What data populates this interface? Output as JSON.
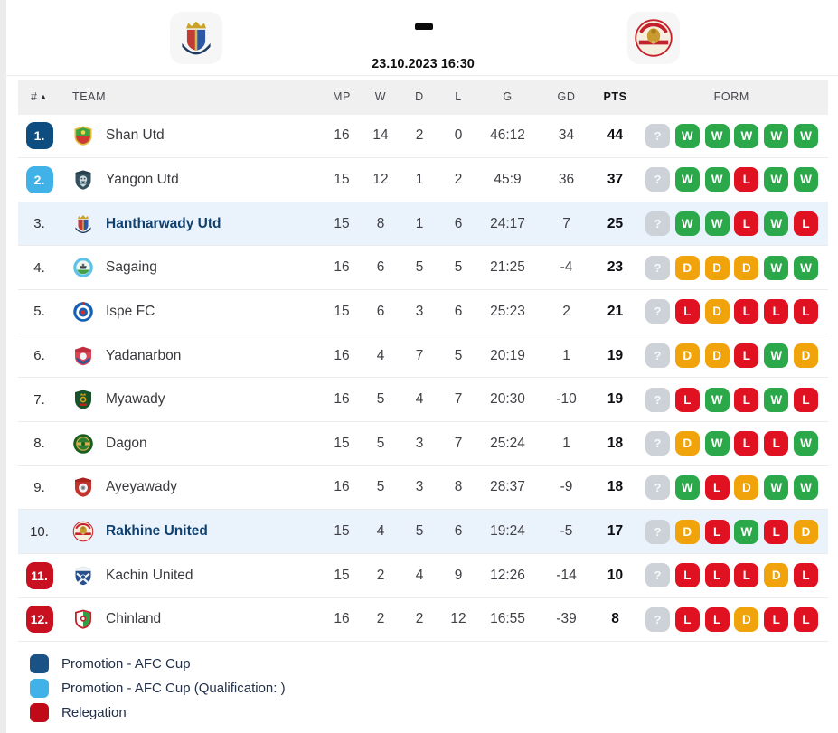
{
  "header": {
    "home_logo": "hantharwady-crest",
    "away_logo": "rakhine-crest",
    "datetime": "23.10.2023 16:30"
  },
  "table": {
    "columns": [
      "#",
      "TEAM",
      "MP",
      "W",
      "D",
      "L",
      "G",
      "GD",
      "PTS",
      "FORM"
    ],
    "form_unknown_label": "?",
    "rows": [
      {
        "pos": "1.",
        "badge": "dark_blue",
        "team": "Shan Utd",
        "logo": "shan-utd",
        "mp": "16",
        "w": "14",
        "d": "2",
        "l": "0",
        "g": "46:12",
        "gd": "34",
        "pts": "44",
        "form": [
          "W",
          "W",
          "W",
          "W",
          "W"
        ],
        "highlight": false
      },
      {
        "pos": "2.",
        "badge": "light_blue",
        "team": "Yangon Utd",
        "logo": "yangon-utd",
        "mp": "15",
        "w": "12",
        "d": "1",
        "l": "2",
        "g": "45:9",
        "gd": "36",
        "pts": "37",
        "form": [
          "W",
          "W",
          "L",
          "W",
          "W"
        ],
        "highlight": false
      },
      {
        "pos": "3.",
        "badge": null,
        "team": "Hantharwady Utd",
        "logo": "hantharwady",
        "mp": "15",
        "w": "8",
        "d": "1",
        "l": "6",
        "g": "24:17",
        "gd": "7",
        "pts": "25",
        "form": [
          "W",
          "W",
          "L",
          "W",
          "L"
        ],
        "highlight": true
      },
      {
        "pos": "4.",
        "badge": null,
        "team": "Sagaing",
        "logo": "sagaing",
        "mp": "16",
        "w": "6",
        "d": "5",
        "l": "5",
        "g": "21:25",
        "gd": "-4",
        "pts": "23",
        "form": [
          "D",
          "D",
          "D",
          "W",
          "W"
        ],
        "highlight": false
      },
      {
        "pos": "5.",
        "badge": null,
        "team": "Ispe FC",
        "logo": "ispe",
        "mp": "15",
        "w": "6",
        "d": "3",
        "l": "6",
        "g": "25:23",
        "gd": "2",
        "pts": "21",
        "form": [
          "L",
          "D",
          "L",
          "L",
          "L"
        ],
        "highlight": false
      },
      {
        "pos": "6.",
        "badge": null,
        "team": "Yadanarbon",
        "logo": "yadanarbon",
        "mp": "16",
        "w": "4",
        "d": "7",
        "l": "5",
        "g": "20:19",
        "gd": "1",
        "pts": "19",
        "form": [
          "D",
          "D",
          "L",
          "W",
          "D"
        ],
        "highlight": false
      },
      {
        "pos": "7.",
        "badge": null,
        "team": "Myawady",
        "logo": "myawady",
        "mp": "16",
        "w": "5",
        "d": "4",
        "l": "7",
        "g": "20:30",
        "gd": "-10",
        "pts": "19",
        "form": [
          "L",
          "W",
          "L",
          "W",
          "L"
        ],
        "highlight": false
      },
      {
        "pos": "8.",
        "badge": null,
        "team": "Dagon",
        "logo": "dagon",
        "mp": "15",
        "w": "5",
        "d": "3",
        "l": "7",
        "g": "25:24",
        "gd": "1",
        "pts": "18",
        "form": [
          "D",
          "W",
          "L",
          "L",
          "W"
        ],
        "highlight": false
      },
      {
        "pos": "9.",
        "badge": null,
        "team": "Ayeyawady",
        "logo": "ayeyawady",
        "mp": "16",
        "w": "5",
        "d": "3",
        "l": "8",
        "g": "28:37",
        "gd": "-9",
        "pts": "18",
        "form": [
          "W",
          "L",
          "D",
          "W",
          "W"
        ],
        "highlight": false
      },
      {
        "pos": "10.",
        "badge": null,
        "team": "Rakhine United",
        "logo": "rakhine",
        "mp": "15",
        "w": "4",
        "d": "5",
        "l": "6",
        "g": "19:24",
        "gd": "-5",
        "pts": "17",
        "form": [
          "D",
          "L",
          "W",
          "L",
          "D"
        ],
        "highlight": true
      },
      {
        "pos": "11.",
        "badge": "red",
        "team": "Kachin United",
        "logo": "kachin",
        "mp": "15",
        "w": "2",
        "d": "4",
        "l": "9",
        "g": "12:26",
        "gd": "-14",
        "pts": "10",
        "form": [
          "L",
          "L",
          "L",
          "D",
          "L"
        ],
        "highlight": false
      },
      {
        "pos": "12.",
        "badge": "red",
        "team": "Chinland",
        "logo": "chinland",
        "mp": "16",
        "w": "2",
        "d": "2",
        "l": "12",
        "g": "16:55",
        "gd": "-39",
        "pts": "8",
        "form": [
          "L",
          "L",
          "D",
          "L",
          "L"
        ],
        "highlight": false
      }
    ]
  },
  "legend": {
    "items": [
      {
        "key": "dark_blue",
        "label": "Promotion - AFC Cup"
      },
      {
        "key": "light_blue",
        "label": "Promotion - AFC Cup (Qualification: )"
      },
      {
        "key": "red",
        "label": "Relegation"
      }
    ]
  },
  "colors": {
    "badges": {
      "dark_blue": "#0d4d80",
      "light_blue": "#41b2e8",
      "red": "#c81021"
    },
    "legend": {
      "dark_blue": "#1a5286",
      "light_blue": "#41b2e8",
      "red": "#c00a18"
    },
    "form": {
      "W": "#2aa84a",
      "L": "#e01221",
      "D": "#f0a30a",
      "unknown": "#cdd2d8"
    },
    "highlight_row": "#eaf2fb"
  }
}
